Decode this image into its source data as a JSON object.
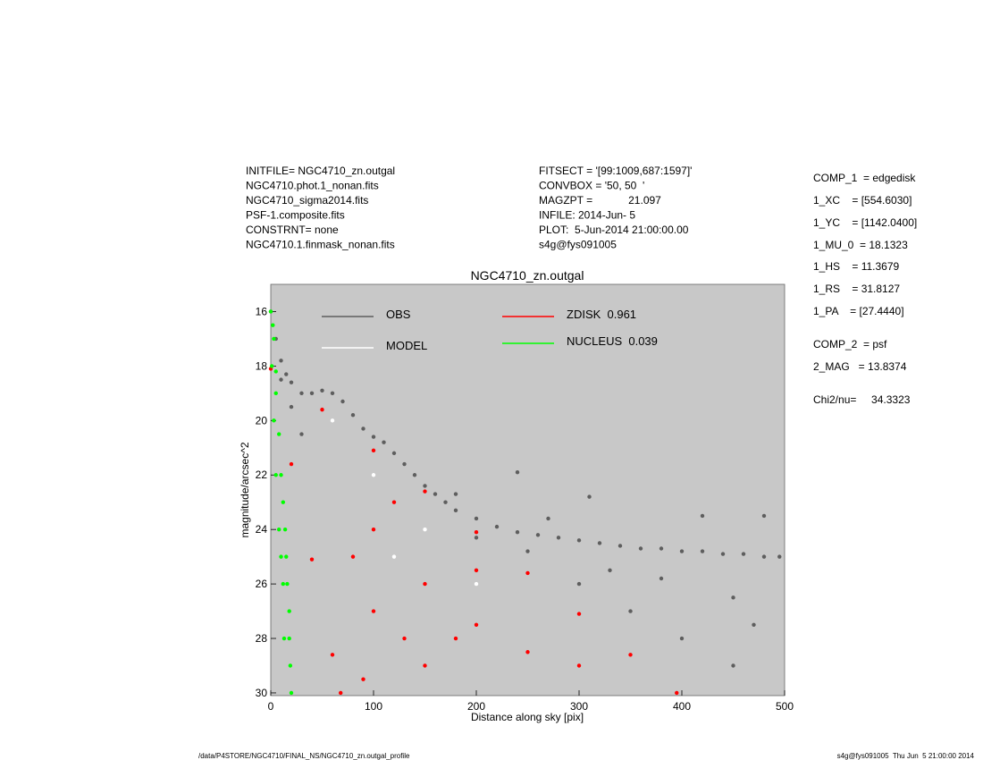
{
  "chart_data": {
    "type": "scatter",
    "title": "NGC4710_zn.outgal",
    "x_label": "Distance along sky [pix]",
    "y_label": "magnitude/arcsec^2",
    "xlim": [
      0,
      500
    ],
    "ylim": [
      30.1,
      15
    ],
    "xticks": [
      0,
      100,
      200,
      300,
      400,
      500
    ],
    "yticks": [
      16,
      18,
      20,
      22,
      24,
      26,
      28,
      30
    ],
    "background": "#c8c8c8",
    "series": [
      {
        "name": "OBS",
        "color": "#5e5e5e",
        "x": [
          0,
          5,
          10,
          15,
          20,
          30,
          40,
          50,
          60,
          70,
          80,
          90,
          100,
          110,
          120,
          130,
          140,
          150,
          160,
          170,
          180,
          200,
          220,
          240,
          260,
          280,
          300,
          320,
          340,
          360,
          380,
          400,
          420,
          440,
          460,
          480,
          495,
          300,
          350,
          400,
          450,
          420,
          480,
          240,
          310,
          450,
          380,
          330,
          470,
          250,
          270,
          200,
          180,
          10,
          20,
          30
        ],
        "y": [
          16,
          17,
          17.8,
          18.3,
          18.6,
          19.0,
          19.0,
          18.9,
          19.0,
          19.3,
          19.8,
          20.3,
          20.6,
          20.8,
          21.2,
          21.6,
          22.0,
          22.4,
          22.7,
          23.0,
          23.3,
          23.6,
          23.9,
          24.1,
          24.2,
          24.3,
          24.4,
          24.5,
          24.6,
          24.7,
          24.7,
          24.8,
          24.8,
          24.9,
          24.9,
          25.0,
          25.0,
          26,
          27,
          28,
          29,
          23.5,
          23.5,
          21.9,
          22.8,
          26.5,
          25.8,
          25.5,
          27.5,
          24.8,
          23.6,
          24.3,
          22.7,
          18.5,
          19.5,
          20.5
        ]
      },
      {
        "name": "MODEL",
        "color": "#ffffff",
        "x": [
          60,
          100,
          150,
          200,
          120
        ],
        "y": [
          20,
          22,
          24,
          26,
          25
        ]
      },
      {
        "name": "ZDISK  0.961",
        "color": "#ff0000",
        "x": [
          0,
          50,
          100,
          150,
          200,
          250,
          300,
          350,
          395,
          20,
          40,
          60,
          68,
          100,
          150,
          200,
          250,
          100,
          150,
          80,
          120,
          200,
          300,
          180,
          130,
          90
        ],
        "y": [
          18.1,
          19.6,
          21.1,
          22.6,
          24.1,
          25.6,
          27.1,
          28.6,
          30,
          21.6,
          25.1,
          28.6,
          30,
          24,
          26,
          27.5,
          28.5,
          27,
          29,
          25,
          23,
          25.5,
          29,
          28,
          28,
          29.5
        ]
      },
      {
        "name": "NUCLEUS  0.039",
        "color": "#00ff00",
        "x": [
          0,
          2,
          3,
          5,
          5,
          8,
          10,
          12,
          14,
          15,
          16,
          18,
          18,
          19,
          20,
          1,
          3,
          5,
          8,
          10,
          12,
          13
        ],
        "y": [
          16.0,
          16.5,
          17,
          18.2,
          19,
          20.5,
          22,
          23,
          24,
          25,
          26,
          27,
          28,
          29,
          30,
          18,
          20,
          22,
          24,
          25,
          26,
          28
        ]
      }
    ],
    "annotations": {
      "files": [
        "INITFILE= NGC4710_zn.outgal",
        "NGC4710.phot.1_nonan.fits",
        "NGC4710_sigma2014.fits",
        "PSF-1.composite.fits",
        "CONSTRNT= none",
        "NGC4710.1.finmask_nonan.fits"
      ],
      "run_info": [
        "FITSECT = '[99:1009,687:1597]'",
        "CONVBOX = '50, 50  '",
        "MAGZPT =            21.097",
        "INFILE: 2014-Jun- 5",
        "PLOT:  5-Jun-2014 21:00:00.00",
        "s4g@fys091005"
      ],
      "parameters": [
        "COMP_1  = edgedisk",
        "1_XC    = [554.6030]",
        "1_YC    = [1142.0400]",
        "1_MU_0  = 18.1323",
        "1_HS    = 11.3679",
        "1_RS    = 31.8127",
        "1_PA    = [27.4440]",
        "COMP_2  = psf",
        "2_MAG   = 13.8374",
        "Chi2/nu=     34.3323"
      ],
      "footer_left": "/data/P4STORE/NGC4710/FINAL_NS/NGC4710_zn.outgal_profile",
      "footer_right": "s4g@fys091005  Thu Jun  5 21:00:00 2014"
    }
  }
}
